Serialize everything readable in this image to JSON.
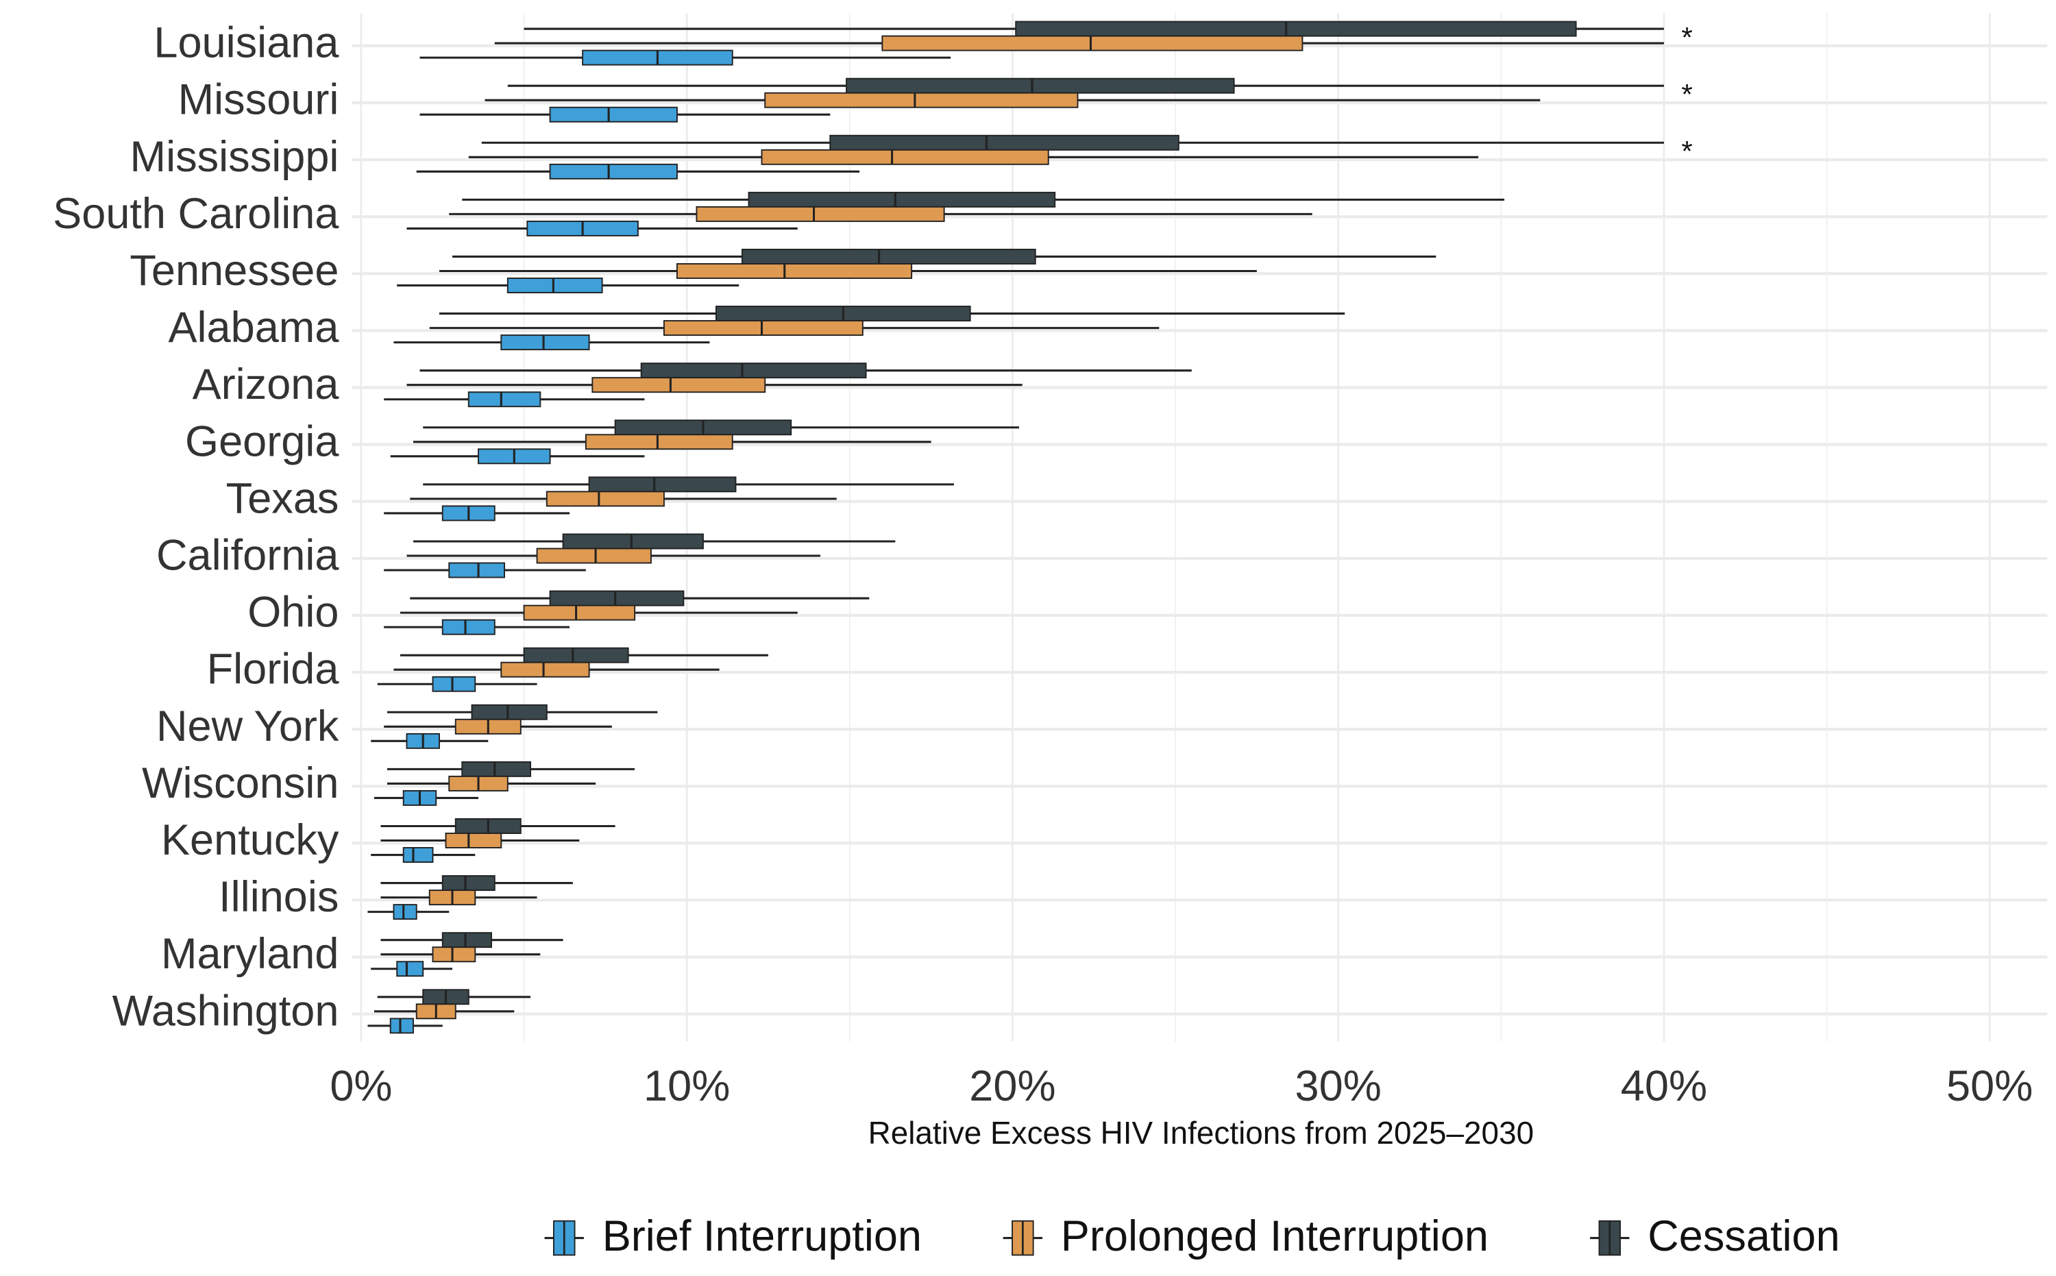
{
  "chart_data": {
    "type": "boxplot",
    "orientation": "horizontal",
    "title": "",
    "xlabel": "Relative Excess HIV Infections from 2025–2030",
    "ylabel": "",
    "xlim": [
      0,
      50
    ],
    "x_ticks": [
      "0%",
      "10%",
      "20%",
      "30%",
      "40%",
      "50%"
    ],
    "x_tick_values": [
      0,
      10,
      20,
      30,
      40,
      50
    ],
    "grid": true,
    "legend_position": "bottom",
    "series": [
      {
        "name": "Brief Interruption",
        "color": "#3f9fd8"
      },
      {
        "name": "Prolonged Interruption",
        "color": "#df9a52"
      },
      {
        "name": "Cessation",
        "color": "#3a474c"
      }
    ],
    "capped_marker": "*",
    "categories": [
      {
        "state": "Louisiana",
        "capped": true,
        "brief": [
          1.8,
          6.8,
          9.1,
          11.4,
          18.1
        ],
        "prolonged": [
          4.1,
          16.0,
          22.4,
          28.9,
          40
        ],
        "cessation": [
          5.0,
          20.1,
          28.4,
          37.3,
          40
        ]
      },
      {
        "state": "Missouri",
        "capped": true,
        "brief": [
          1.8,
          5.8,
          7.6,
          9.7,
          14.4
        ],
        "prolonged": [
          3.8,
          12.4,
          17.0,
          22.0,
          36.2
        ],
        "cessation": [
          4.5,
          14.9,
          20.6,
          26.8,
          40
        ]
      },
      {
        "state": "Mississippi",
        "capped": true,
        "brief": [
          1.7,
          5.8,
          7.6,
          9.7,
          15.3
        ],
        "prolonged": [
          3.3,
          12.3,
          16.3,
          21.1,
          34.3
        ],
        "cessation": [
          3.7,
          14.4,
          19.2,
          25.1,
          40
        ]
      },
      {
        "state": "South Carolina",
        "capped": false,
        "brief": [
          1.4,
          5.1,
          6.8,
          8.5,
          13.4
        ],
        "prolonged": [
          2.7,
          10.3,
          13.9,
          17.9,
          29.2
        ],
        "cessation": [
          3.1,
          11.9,
          16.4,
          21.3,
          35.1
        ]
      },
      {
        "state": "Tennessee",
        "capped": false,
        "brief": [
          1.1,
          4.5,
          5.9,
          7.4,
          11.6
        ],
        "prolonged": [
          2.4,
          9.7,
          13.0,
          16.9,
          27.5
        ],
        "cessation": [
          2.8,
          11.7,
          15.9,
          20.7,
          33.0
        ]
      },
      {
        "state": "Alabama",
        "capped": false,
        "brief": [
          1.0,
          4.3,
          5.6,
          7.0,
          10.7
        ],
        "prolonged": [
          2.1,
          9.3,
          12.3,
          15.4,
          24.5
        ],
        "cessation": [
          2.4,
          10.9,
          14.8,
          18.7,
          30.2
        ]
      },
      {
        "state": "Arizona",
        "capped": false,
        "brief": [
          0.7,
          3.3,
          4.3,
          5.5,
          8.7
        ],
        "prolonged": [
          1.4,
          7.1,
          9.5,
          12.4,
          20.3
        ],
        "cessation": [
          1.8,
          8.6,
          11.7,
          15.5,
          25.5
        ]
      },
      {
        "state": "Georgia",
        "capped": false,
        "brief": [
          0.9,
          3.6,
          4.7,
          5.8,
          8.7
        ],
        "prolonged": [
          1.6,
          6.9,
          9.1,
          11.4,
          17.5
        ],
        "cessation": [
          1.9,
          7.8,
          10.5,
          13.2,
          20.2
        ]
      },
      {
        "state": "Texas",
        "capped": false,
        "brief": [
          0.7,
          2.5,
          3.3,
          4.1,
          6.4
        ],
        "prolonged": [
          1.5,
          5.7,
          7.3,
          9.3,
          14.6
        ],
        "cessation": [
          1.9,
          7.0,
          9.0,
          11.5,
          18.2
        ]
      },
      {
        "state": "California",
        "capped": false,
        "brief": [
          0.7,
          2.7,
          3.6,
          4.4,
          6.9
        ],
        "prolonged": [
          1.4,
          5.4,
          7.2,
          8.9,
          14.1
        ],
        "cessation": [
          1.6,
          6.2,
          8.3,
          10.5,
          16.4
        ]
      },
      {
        "state": "Ohio",
        "capped": false,
        "brief": [
          0.7,
          2.5,
          3.2,
          4.1,
          6.4
        ],
        "prolonged": [
          1.2,
          5.0,
          6.6,
          8.4,
          13.4
        ],
        "cessation": [
          1.5,
          5.8,
          7.8,
          9.9,
          15.6
        ]
      },
      {
        "state": "Florida",
        "capped": false,
        "brief": [
          0.5,
          2.2,
          2.8,
          3.5,
          5.4
        ],
        "prolonged": [
          1.0,
          4.3,
          5.6,
          7.0,
          11.0
        ],
        "cessation": [
          1.2,
          5.0,
          6.5,
          8.2,
          12.5
        ]
      },
      {
        "state": "New York",
        "capped": false,
        "brief": [
          0.3,
          1.4,
          1.9,
          2.4,
          3.9
        ],
        "prolonged": [
          0.7,
          2.9,
          3.9,
          4.9,
          7.7
        ],
        "cessation": [
          0.8,
          3.4,
          4.5,
          5.7,
          9.1
        ]
      },
      {
        "state": "Wisconsin",
        "capped": false,
        "brief": [
          0.4,
          1.3,
          1.8,
          2.3,
          3.6
        ],
        "prolonged": [
          0.8,
          2.7,
          3.6,
          4.5,
          7.2
        ],
        "cessation": [
          0.8,
          3.1,
          4.1,
          5.2,
          8.4
        ]
      },
      {
        "state": "Kentucky",
        "capped": false,
        "brief": [
          0.3,
          1.3,
          1.6,
          2.2,
          3.5
        ],
        "prolonged": [
          0.6,
          2.6,
          3.3,
          4.3,
          6.7
        ],
        "cessation": [
          0.6,
          2.9,
          3.9,
          4.9,
          7.8
        ]
      },
      {
        "state": "Illinois",
        "capped": false,
        "brief": [
          0.2,
          1.0,
          1.3,
          1.7,
          2.7
        ],
        "prolonged": [
          0.6,
          2.1,
          2.8,
          3.5,
          5.4
        ],
        "cessation": [
          0.6,
          2.5,
          3.2,
          4.1,
          6.5
        ]
      },
      {
        "state": "Maryland",
        "capped": false,
        "brief": [
          0.3,
          1.1,
          1.4,
          1.9,
          2.8
        ],
        "prolonged": [
          0.6,
          2.2,
          2.8,
          3.5,
          5.5
        ],
        "cessation": [
          0.6,
          2.5,
          3.2,
          4.0,
          6.2
        ]
      },
      {
        "state": "Washington",
        "capped": false,
        "brief": [
          0.2,
          0.9,
          1.2,
          1.6,
          2.5
        ],
        "prolonged": [
          0.4,
          1.7,
          2.3,
          2.9,
          4.7
        ],
        "cessation": [
          0.5,
          1.9,
          2.6,
          3.3,
          5.2
        ]
      }
    ]
  }
}
